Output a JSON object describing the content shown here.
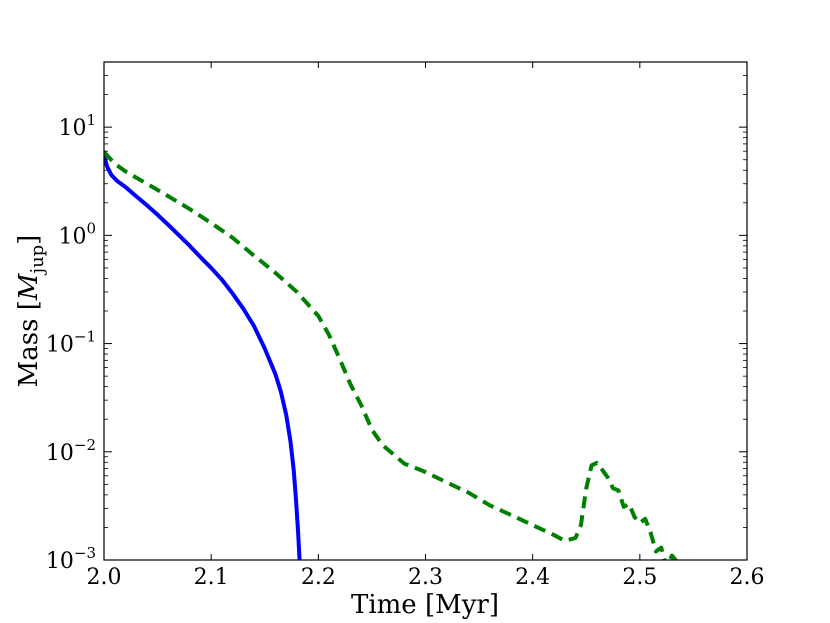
{
  "chart_data": {
    "type": "line",
    "xlabel": "Time [Myr]",
    "ylabel": {
      "prefix": "Mass [",
      "symbol": "M",
      "subscript": "jup",
      "suffix": "]"
    },
    "xlim": [
      2.0,
      2.6
    ],
    "ylim": [
      0.001,
      40
    ],
    "yscale": "log",
    "grid": false,
    "x_ticks": [
      "2.0",
      "2.1",
      "2.2",
      "2.3",
      "2.4",
      "2.5",
      "2.6"
    ],
    "y_ticks": [
      {
        "base": "10",
        "exp": "−3",
        "value": 0.001
      },
      {
        "base": "10",
        "exp": "−2",
        "value": 0.01
      },
      {
        "base": "10",
        "exp": "−1",
        "value": 0.1
      },
      {
        "base": "10",
        "exp": "0",
        "value": 1
      },
      {
        "base": "10",
        "exp": "1",
        "value": 10
      }
    ],
    "series": [
      {
        "style": "solid",
        "color": "#0000ff",
        "points": [
          [
            2.0,
            5.4
          ],
          [
            2.003,
            4.3
          ],
          [
            2.007,
            3.6
          ],
          [
            2.012,
            3.2
          ],
          [
            2.02,
            2.8
          ],
          [
            2.03,
            2.3
          ],
          [
            2.04,
            1.9
          ],
          [
            2.05,
            1.55
          ],
          [
            2.06,
            1.25
          ],
          [
            2.07,
            1.0
          ],
          [
            2.08,
            0.8
          ],
          [
            2.09,
            0.63
          ],
          [
            2.1,
            0.5
          ],
          [
            2.11,
            0.39
          ],
          [
            2.12,
            0.29
          ],
          [
            2.13,
            0.21
          ],
          [
            2.14,
            0.145
          ],
          [
            2.15,
            0.09
          ],
          [
            2.16,
            0.052
          ],
          [
            2.165,
            0.036
          ],
          [
            2.17,
            0.022
          ],
          [
            2.174,
            0.0125
          ],
          [
            2.177,
            0.0068
          ],
          [
            2.179,
            0.0038
          ],
          [
            2.181,
            0.0019
          ],
          [
            2.1825,
            0.001
          ]
        ]
      },
      {
        "style": "dashed",
        "color": "#008000",
        "points": [
          [
            2.0,
            5.9
          ],
          [
            2.01,
            4.6
          ],
          [
            2.02,
            3.9
          ],
          [
            2.04,
            3.0
          ],
          [
            2.06,
            2.3
          ],
          [
            2.08,
            1.75
          ],
          [
            2.1,
            1.3
          ],
          [
            2.12,
            0.95
          ],
          [
            2.14,
            0.65
          ],
          [
            2.16,
            0.45
          ],
          [
            2.18,
            0.3
          ],
          [
            2.2,
            0.18
          ],
          [
            2.21,
            0.12
          ],
          [
            2.22,
            0.072
          ],
          [
            2.23,
            0.042
          ],
          [
            2.24,
            0.027
          ],
          [
            2.25,
            0.016
          ],
          [
            2.26,
            0.0115
          ],
          [
            2.27,
            0.0095
          ],
          [
            2.28,
            0.0078
          ],
          [
            2.3,
            0.0065
          ],
          [
            2.32,
            0.0052
          ],
          [
            2.34,
            0.0042
          ],
          [
            2.36,
            0.0032
          ],
          [
            2.38,
            0.0026
          ],
          [
            2.4,
            0.0021
          ],
          [
            2.42,
            0.0017
          ],
          [
            2.43,
            0.0015
          ],
          [
            2.44,
            0.0016
          ],
          [
            2.445,
            0.0021
          ],
          [
            2.45,
            0.0046
          ],
          [
            2.455,
            0.0075
          ],
          [
            2.46,
            0.0079
          ],
          [
            2.465,
            0.0068
          ],
          [
            2.47,
            0.0058
          ],
          [
            2.475,
            0.0046
          ],
          [
            2.48,
            0.0044
          ],
          [
            2.485,
            0.0031
          ],
          [
            2.49,
            0.0033
          ],
          [
            2.495,
            0.0025
          ],
          [
            2.5,
            0.0022
          ],
          [
            2.505,
            0.0024
          ],
          [
            2.51,
            0.0018
          ],
          [
            2.515,
            0.0012
          ],
          [
            2.52,
            0.0013
          ],
          [
            2.525,
            0.00085
          ],
          [
            2.53,
            0.0011
          ],
          [
            2.535,
            0.00095
          ]
        ]
      }
    ]
  }
}
